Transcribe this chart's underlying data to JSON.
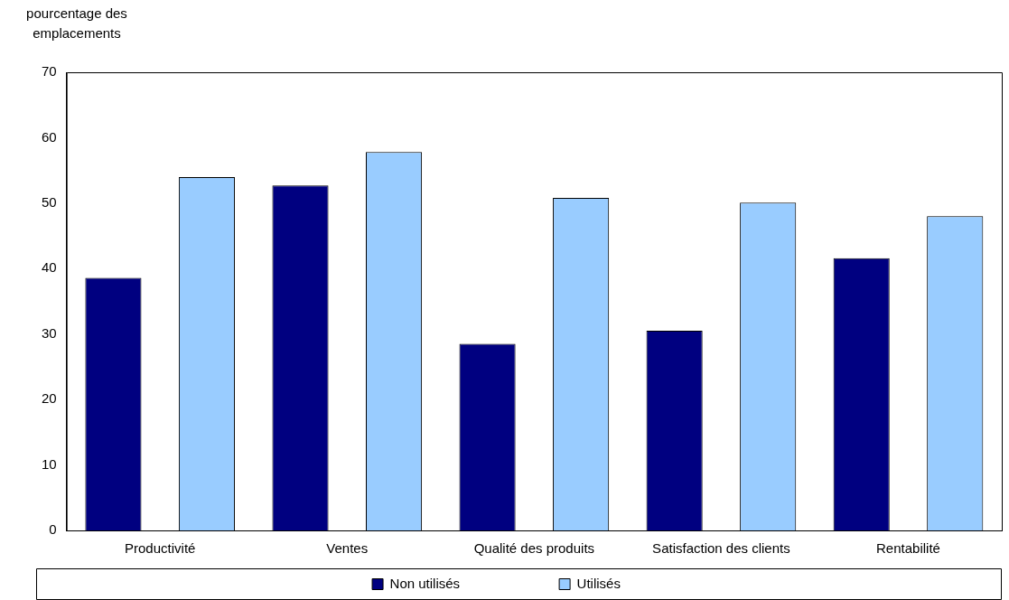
{
  "chart_data": {
    "type": "bar",
    "ylabel": "pourcentage des emplacements",
    "categories": [
      "Productivité",
      "Ventes",
      "Qualité des produits",
      "Satisfaction des clients",
      "Rentabilité"
    ],
    "series": [
      {
        "name": "Non utilisés",
        "color": "#000080",
        "values": [
          38.6,
          52.7,
          28.5,
          30.5,
          41.6
        ]
      },
      {
        "name": "Utilisés",
        "color": "#99ccff",
        "values": [
          54,
          57.8,
          50.8,
          50.1,
          48
        ]
      }
    ],
    "ylim": [
      0,
      70
    ],
    "yticks": [
      0,
      10,
      20,
      30,
      40,
      50,
      60,
      70
    ],
    "grid": false,
    "legend": "bottom"
  }
}
